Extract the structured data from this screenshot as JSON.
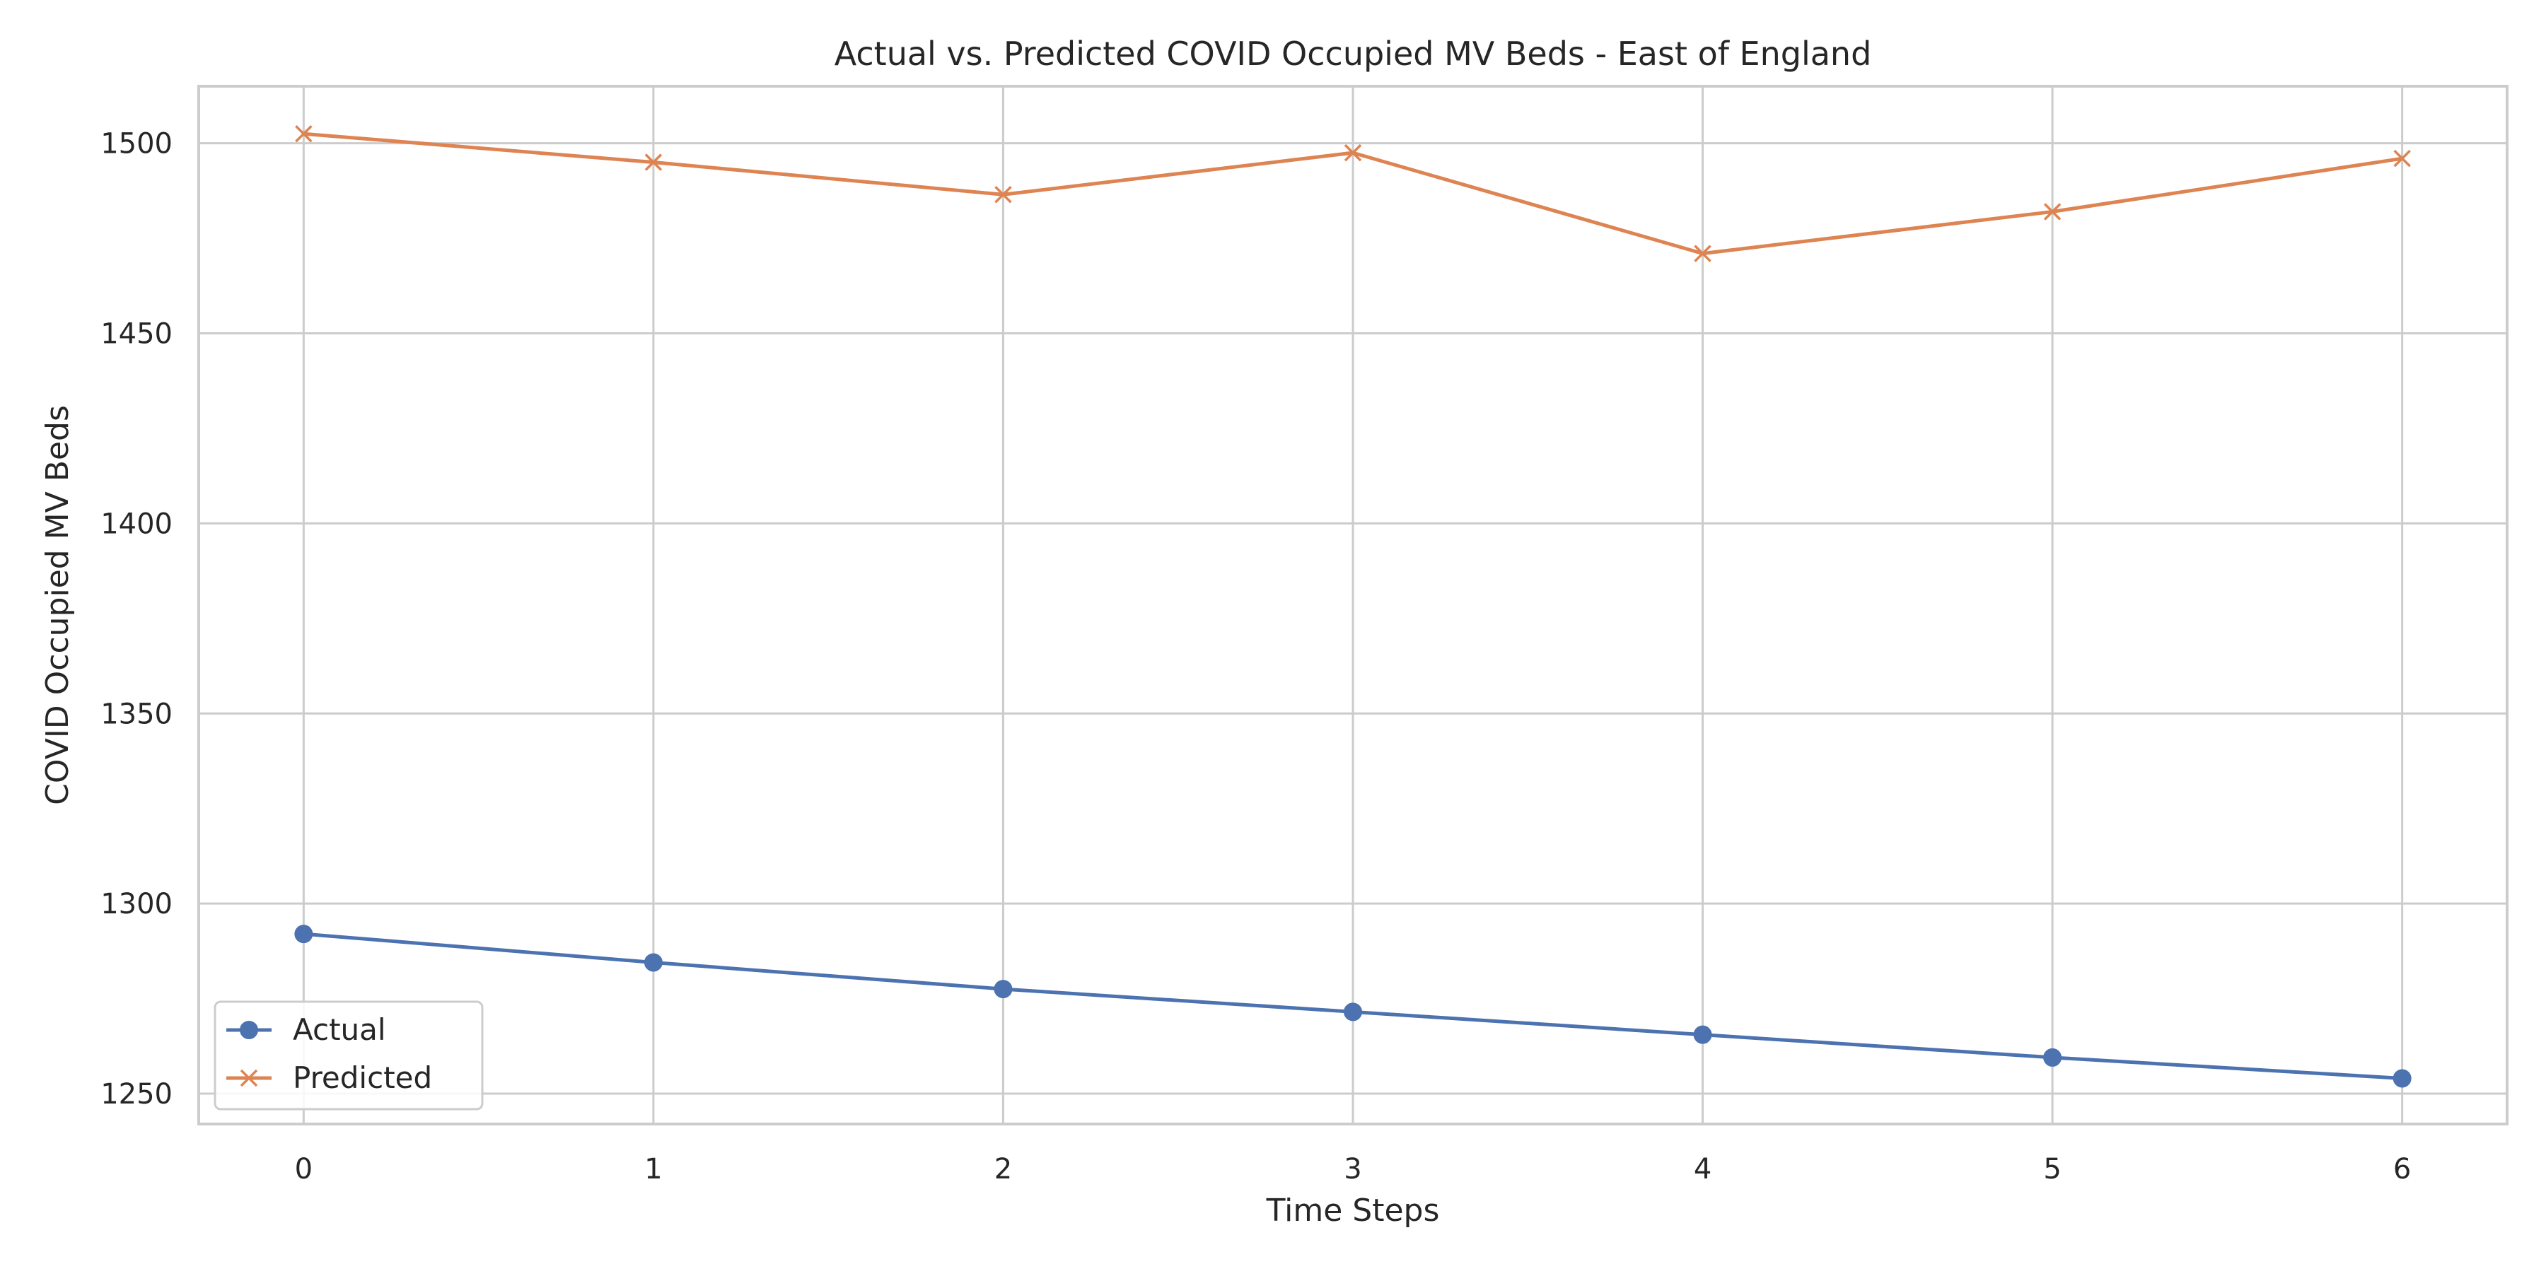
{
  "chart_data": {
    "type": "line",
    "title": "Actual vs. Predicted COVID Occupied MV Beds - East of England",
    "xlabel": "Time Steps",
    "ylabel": "COVID Occupied MV Beds",
    "x": [
      0,
      1,
      2,
      3,
      4,
      5,
      6
    ],
    "xlim": [
      -0.3,
      6.3
    ],
    "ylim": [
      1242,
      1515
    ],
    "xticks": [
      "0",
      "1",
      "2",
      "3",
      "4",
      "5",
      "6"
    ],
    "yticks": [
      "1250",
      "1300",
      "1350",
      "1400",
      "1450",
      "1500"
    ],
    "grid": true,
    "legend_position": "lower-left",
    "series": [
      {
        "name": "Actual",
        "color": "#4C72B0",
        "marker": "circle",
        "values": [
          1292,
          1284.5,
          1277.5,
          1271.5,
          1265.5,
          1259.5,
          1254
        ]
      },
      {
        "name": "Predicted",
        "color": "#DD8452",
        "marker": "x",
        "values": [
          1502.5,
          1495,
          1486.5,
          1497.5,
          1471,
          1482,
          1496
        ]
      }
    ]
  }
}
